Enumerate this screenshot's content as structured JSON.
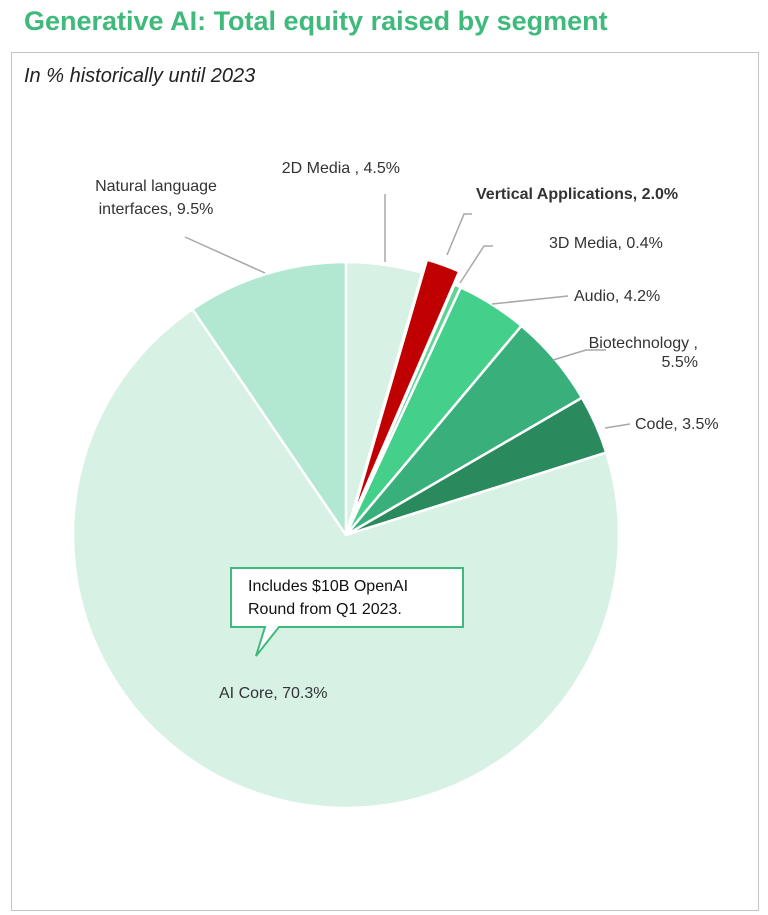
{
  "title": "Generative AI: Total equity raised by segment",
  "subtitle": "In % historically until 2023",
  "chart_data": {
    "type": "pie",
    "unit": "%",
    "highlight_color": "#c00000",
    "slices": [
      {
        "name": "2D Media",
        "label": "2D Media , 4.5%",
        "value": 4.5,
        "color": "#d7f2e4"
      },
      {
        "name": "Vertical Applications",
        "label": "Vertical Applications, 2.0%",
        "value": 2.0,
        "color": "#c00000",
        "highlight": true
      },
      {
        "name": "3D Media",
        "label": "3D Media, 0.4%",
        "value": 0.4,
        "color": "#5fd595"
      },
      {
        "name": "Audio",
        "label": "Audio, 4.2%",
        "value": 4.2,
        "color": "#44d08a"
      },
      {
        "name": "Biotechnology",
        "label": [
          "Biotechnology ,",
          "5.5%"
        ],
        "value": 5.5,
        "color": "#39b07b"
      },
      {
        "name": "Code",
        "label": "Code, 3.5%",
        "value": 3.5,
        "color": "#2a8a5e"
      },
      {
        "name": "AI Core",
        "label": "AI Core, 70.3%",
        "value": 70.3,
        "color": "#d7f2e4"
      },
      {
        "name": "Natural language interfaces",
        "label": [
          "Natural language",
          "interfaces, 9.5%"
        ],
        "value": 9.5,
        "color": "#b2e8d2"
      }
    ],
    "annotation": {
      "lines": [
        "Includes $10B OpenAI",
        "Round from Q1 2023."
      ],
      "target": "AI Core",
      "border_color": "#3fba7c"
    }
  }
}
